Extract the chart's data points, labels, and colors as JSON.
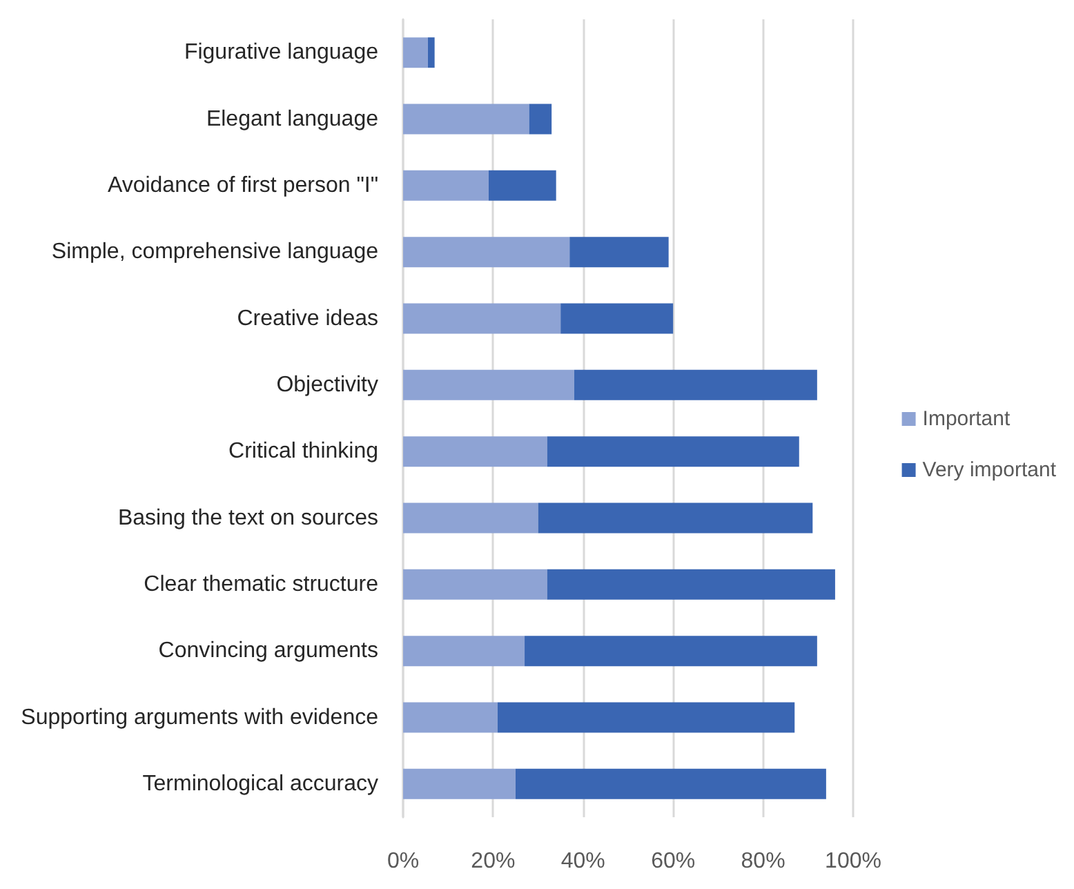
{
  "chart_data": {
    "type": "bar",
    "orientation": "horizontal",
    "stacked": true,
    "categories": [
      "Figurative language",
      "Elegant language",
      "Avoidance of first person \"I\"",
      "Simple, comprehensive language",
      "Creative ideas",
      "Objectivity",
      "Critical thinking",
      "Basing the text on sources",
      "Clear thematic structure",
      "Convincing arguments",
      "Supporting arguments with evidence",
      "Terminological accuracy"
    ],
    "series": [
      {
        "name": "Important",
        "color": "#8ea3d4",
        "values": [
          5.5,
          28,
          19,
          37,
          35,
          38,
          32,
          30,
          32,
          27,
          21,
          25
        ]
      },
      {
        "name": "Very important",
        "color": "#3a66b3",
        "values": [
          1.5,
          5,
          15,
          22,
          25,
          54,
          56,
          61,
          64,
          65,
          66,
          69
        ]
      }
    ],
    "xlim": [
      0,
      100
    ],
    "xticks": [
      {
        "value": 0,
        "label": "0%"
      },
      {
        "value": 20,
        "label": "20%"
      },
      {
        "value": 40,
        "label": "40%"
      },
      {
        "value": 60,
        "label": "60%"
      },
      {
        "value": 80,
        "label": "80%"
      },
      {
        "value": 100,
        "label": "100%"
      }
    ],
    "grid": "x",
    "legend": "right"
  }
}
